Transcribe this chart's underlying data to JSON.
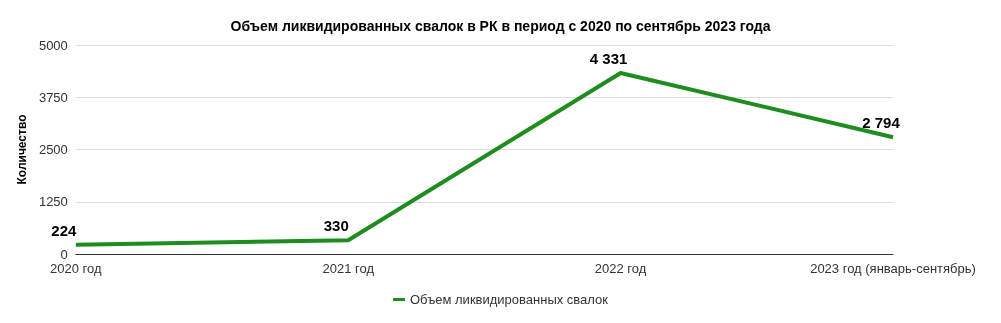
{
  "chart_data": {
    "type": "line",
    "title": "Объем ликвидированных свалок в РК в период с 2020 по сентябрь 2023 года",
    "ylabel": "Количество",
    "categories": [
      "2020 год",
      "2021 год",
      "2022 год",
      "2023 год (январь-сентябрь)"
    ],
    "series": [
      {
        "name": "Объем ликвидированных свалок",
        "color": "#1e8c1e",
        "values": [
          224,
          330,
          4331,
          2794
        ],
        "value_labels": [
          "224",
          "330",
          "4 331",
          "2 794"
        ]
      }
    ],
    "ylim": [
      0,
      5000
    ],
    "yticks": [
      0,
      1250,
      2500,
      3750,
      5000
    ],
    "grid": "y",
    "legend": "bottom",
    "marker": "none"
  }
}
